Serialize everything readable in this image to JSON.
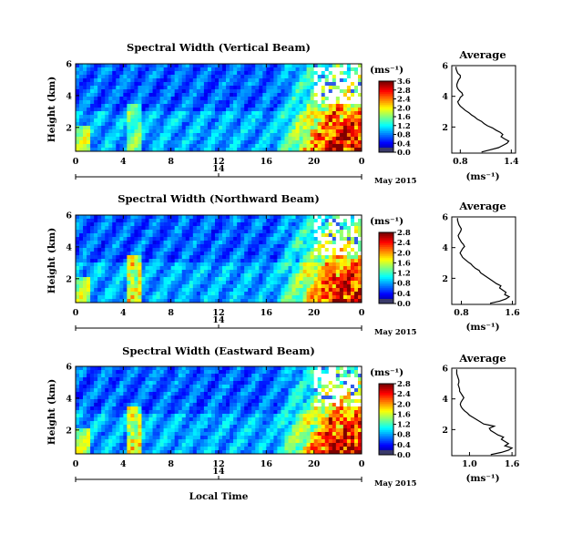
{
  "bottom_xlabel": "Local Time",
  "chart_data": [
    {
      "type": "heatmap",
      "title": "Spectral Width (Vertical Beam)",
      "ylabel": "Height (km)",
      "x_ticks": [
        "0",
        "4",
        "8",
        "12",
        "16",
        "20",
        "0"
      ],
      "y_ticks": [
        "2",
        "4",
        "6"
      ],
      "ylim": [
        0.5,
        6
      ],
      "date_axis": {
        "tick_label": "14",
        "month_year": "May 2015"
      },
      "colorbar": {
        "unit": "(ms⁻¹)",
        "ticks": [
          "0.0",
          "0.4",
          "0.8",
          "1.2",
          "1.6",
          "2.0",
          "2.4",
          "2.8",
          "3.6"
        ]
      },
      "average_profile": {
        "title": "Average",
        "xlabel": "(ms⁻¹)",
        "x_ticks": [
          "0.8",
          "1.4"
        ],
        "y_ticks": [
          "2",
          "4",
          "6"
        ],
        "xlim": [
          0.7,
          1.45
        ],
        "ylim": [
          0.3,
          6
        ],
        "values": [
          1.05,
          1.15,
          1.25,
          1.3,
          1.35,
          1.37,
          1.32,
          1.28,
          1.3,
          1.27,
          1.22,
          1.18,
          1.12,
          1.08,
          1.05,
          1.0,
          0.97,
          0.93,
          0.9,
          0.86,
          0.83,
          0.8,
          0.78,
          0.77,
          0.79,
          0.8,
          0.83,
          0.82,
          0.79,
          0.77,
          0.76,
          0.76,
          0.77,
          0.78,
          0.8,
          0.8,
          0.77,
          0.76,
          0.75,
          0.75
        ]
      }
    },
    {
      "type": "heatmap",
      "title": "Spectral Width (Northward Beam)",
      "ylabel": "Height (km)",
      "x_ticks": [
        "0",
        "4",
        "8",
        "12",
        "16",
        "20",
        "0"
      ],
      "y_ticks": [
        "2",
        "4",
        "6"
      ],
      "ylim": [
        0.5,
        6
      ],
      "date_axis": {
        "tick_label": "14",
        "month_year": "May 2015"
      },
      "colorbar": {
        "unit": "(ms⁻¹)",
        "ticks": [
          "0.0",
          "0.4",
          "0.8",
          "1.2",
          "1.6",
          "2.0",
          "2.4",
          "2.8"
        ]
      },
      "average_profile": {
        "title": "Average",
        "xlabel": "(ms⁻¹)",
        "x_ticks": [
          "0.8",
          "1.6"
        ],
        "y_ticks": [
          "2",
          "4",
          "6"
        ],
        "xlim": [
          0.65,
          1.65
        ],
        "ylim": [
          0.3,
          6
        ],
        "values": [
          1.25,
          1.4,
          1.5,
          1.55,
          1.48,
          1.5,
          1.45,
          1.4,
          1.42,
          1.35,
          1.3,
          1.25,
          1.2,
          1.15,
          1.1,
          1.08,
          1.02,
          0.98,
          0.95,
          0.9,
          0.86,
          0.82,
          0.8,
          0.78,
          0.8,
          0.82,
          0.85,
          0.83,
          0.8,
          0.78,
          0.76,
          0.75,
          0.77,
          0.79,
          0.8,
          0.78,
          0.76,
          0.75,
          0.74,
          0.74
        ]
      }
    },
    {
      "type": "heatmap",
      "title": "Spectral Width (Eastward Beam)",
      "ylabel": "Height (km)",
      "x_ticks": [
        "0",
        "4",
        "8",
        "12",
        "16",
        "20",
        "0"
      ],
      "y_ticks": [
        "2",
        "4",
        "6"
      ],
      "ylim": [
        0.5,
        6
      ],
      "date_axis": {
        "tick_label": "14",
        "month_year": "May 2015"
      },
      "colorbar": {
        "unit": "(ms⁻¹)",
        "ticks": [
          "0.0",
          "0.4",
          "0.8",
          "1.2",
          "1.6",
          "2.0",
          "2.4",
          "2.8"
        ]
      },
      "average_profile": {
        "title": "Average",
        "xlabel": "(ms⁻¹)",
        "x_ticks": [
          "1.0",
          "1.6"
        ],
        "y_ticks": [
          "2",
          "4",
          "6"
        ],
        "xlim": [
          0.75,
          1.65
        ],
        "ylim": [
          0.3,
          6
        ],
        "values": [
          1.3,
          1.45,
          1.55,
          1.6,
          1.5,
          1.55,
          1.5,
          1.45,
          1.48,
          1.4,
          1.35,
          1.3,
          1.28,
          1.35,
          1.2,
          1.15,
          1.1,
          1.05,
          1.0,
          0.97,
          0.93,
          0.9,
          0.88,
          0.87,
          0.88,
          0.9,
          0.92,
          0.9,
          0.88,
          0.86,
          0.86,
          0.85,
          0.84,
          0.85,
          0.85,
          0.84,
          0.83,
          0.82,
          0.82,
          0.82
        ]
      }
    }
  ]
}
